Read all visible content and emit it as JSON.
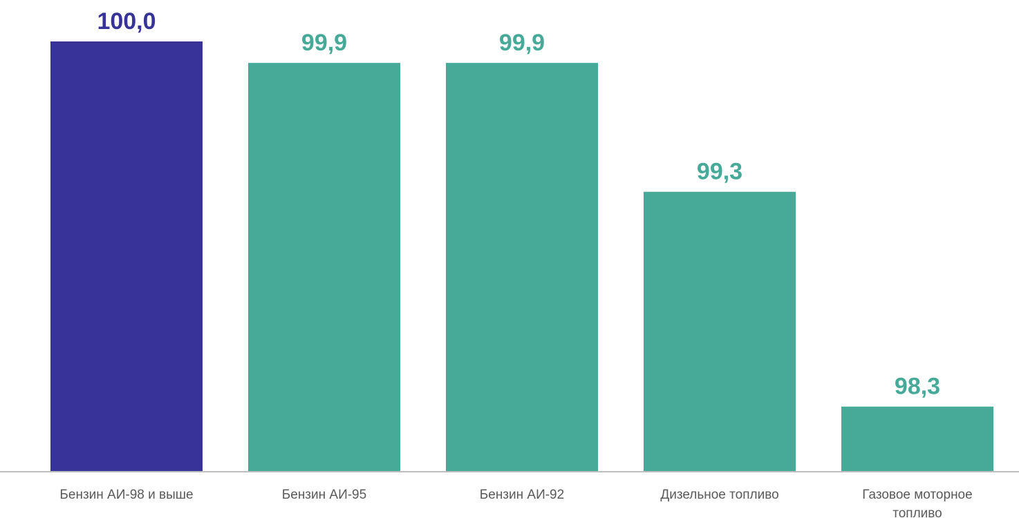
{
  "chart_data": {
    "type": "bar",
    "categories": [
      [
        "Бензин АИ-98 и выше"
      ],
      [
        "Бензин АИ-95"
      ],
      [
        "Бензин АИ-92"
      ],
      [
        "Дизельное топливо"
      ],
      [
        "Газовое моторное",
        "топливо"
      ]
    ],
    "values": [
      100.0,
      99.9,
      99.9,
      99.3,
      98.3
    ],
    "value_labels": [
      "100,0",
      "99,9",
      "99,9",
      "99,3",
      "98,3"
    ],
    "ylim": [
      98.0,
      100.0
    ],
    "grid": false,
    "colors": {
      "highlight": "#383396",
      "default": "#47aa98",
      "axis": "#bfbfbf",
      "category_text": "#595959"
    },
    "highlight_index": 0
  }
}
